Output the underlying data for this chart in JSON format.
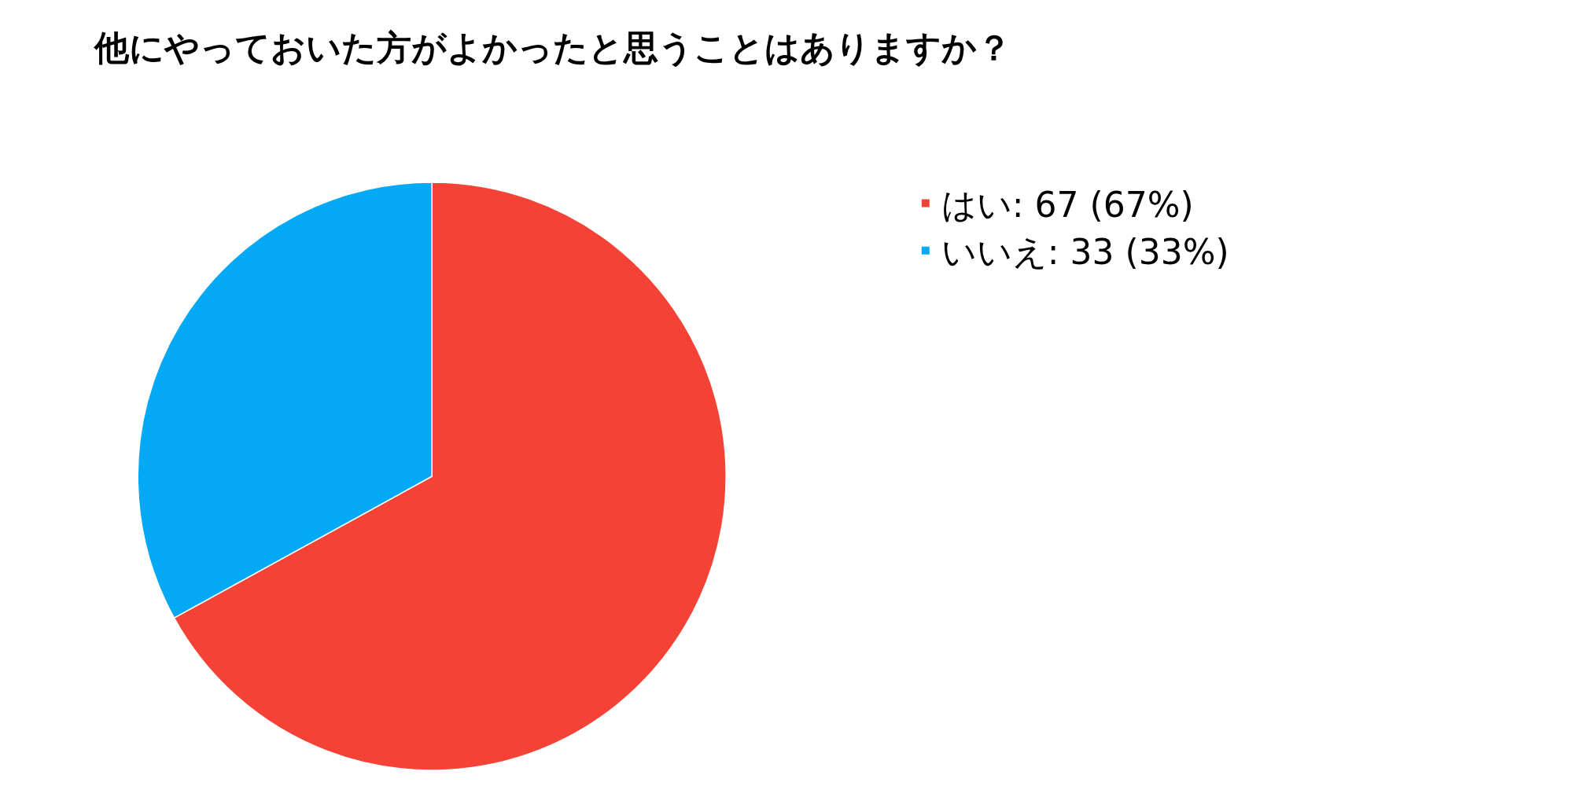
{
  "chart_data": {
    "type": "pie",
    "title": "他にやっておいた方がよかったと思うことはありますか？",
    "categories": [
      "はい",
      "いいえ"
    ],
    "values": [
      67,
      33
    ],
    "value_labels": [
      "67 (67%)",
      "33 (33%)"
    ],
    "colors": [
      "#f44336",
      "#03a9f4"
    ],
    "legend": "top right"
  }
}
